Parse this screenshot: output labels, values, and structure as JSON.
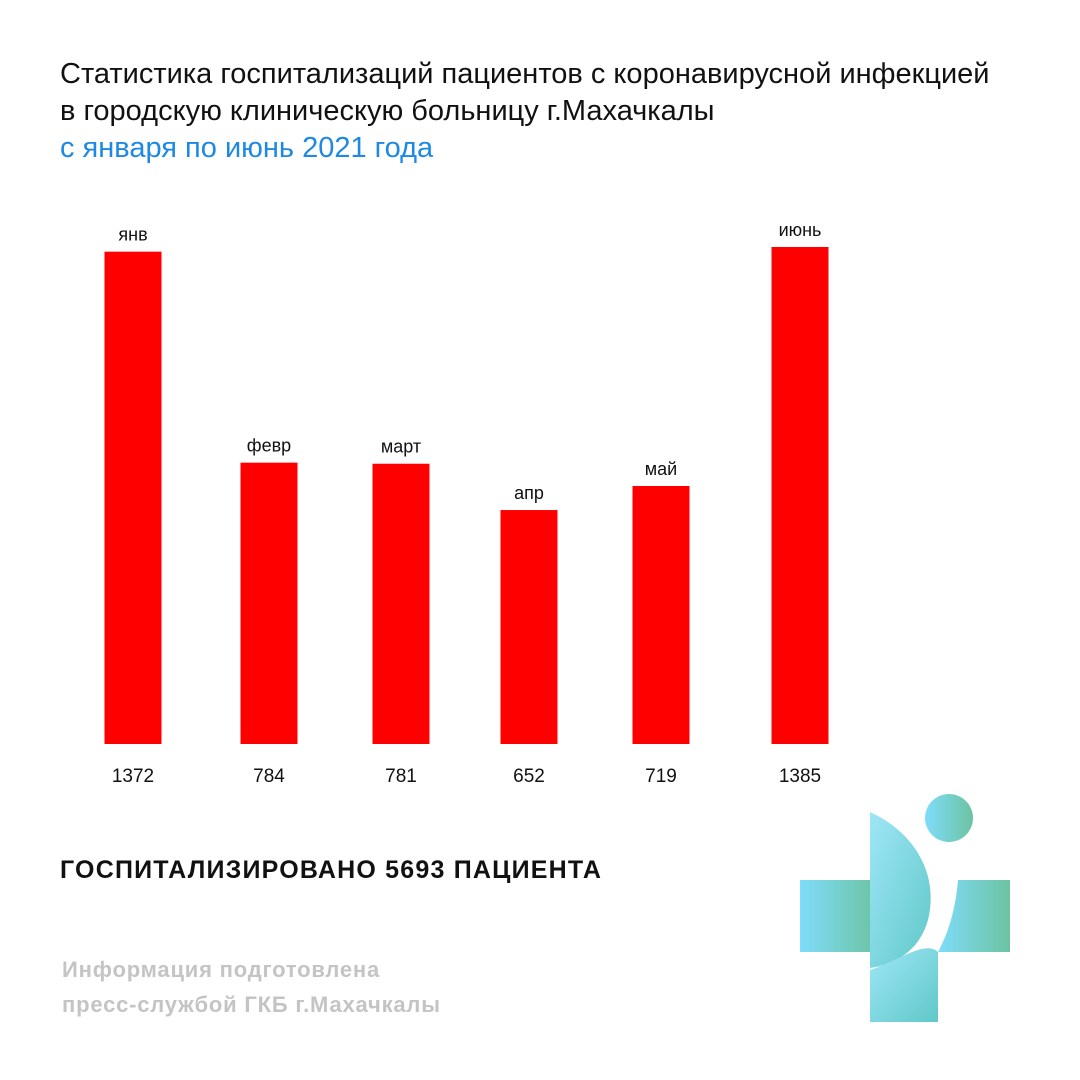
{
  "header": {
    "title_line1": "Статистика госпитализаций пациентов с коронавирусной инфекцией",
    "title_line2": "в городскую клиническую больницу г.Махачкалы",
    "subtitle": "с января по июнь 2021 года"
  },
  "chart_data": {
    "type": "bar",
    "categories": [
      "янв",
      "февр",
      "март",
      "апр",
      "май",
      "июнь"
    ],
    "values": [
      1372,
      784,
      781,
      652,
      719,
      1385
    ],
    "value_labels": [
      "1372",
      "784",
      "781",
      "652",
      "719",
      "1385"
    ],
    "title": "Статистика госпитализаций пациентов с коронавирусной инфекцией в городскую клиническую больницу г.Махачкалы",
    "subtitle": "с января по июнь 2021 года",
    "xlabel": "",
    "ylabel": "",
    "grid": false,
    "legend": "none",
    "bar_color": "#ff0000"
  },
  "summary": {
    "total_text": "ГОСПИТАЛИЗИРОВАНО 5693 ПАЦИЕНТА"
  },
  "footer": {
    "credit_line1": "Информация подготовлена",
    "credit_line2": "пресс-службой ГКБ г.Махачкалы"
  },
  "colors": {
    "bar": "#ff0000",
    "subtitle": "#1e88e5",
    "credit": "#c4c4c4",
    "logo_gradient_start": "#7fdcfb",
    "logo_gradient_end": "#6cc3a0"
  },
  "logo": {
    "icon": "medical-cross-person-icon"
  }
}
